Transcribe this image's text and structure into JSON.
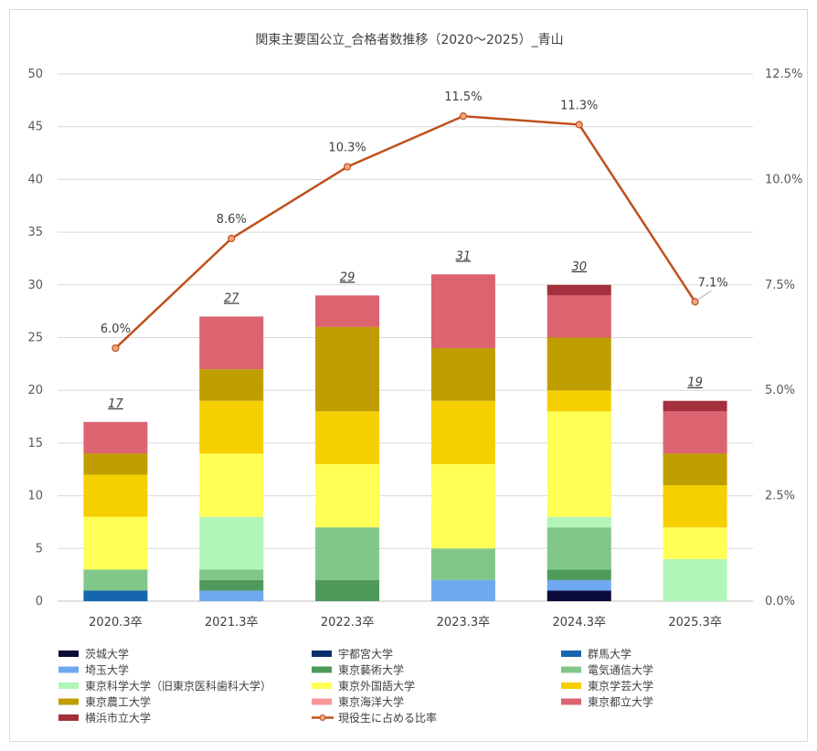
{
  "chart_data": {
    "type": "bar",
    "stacked": true,
    "title": "関東主要国公立_合格者数推移（2020～2025）_青山",
    "categories": [
      "2020.3卒",
      "2021.3卒",
      "2022.3卒",
      "2023.3卒",
      "2024.3卒",
      "2025.3卒"
    ],
    "left_axis": {
      "ylim": [
        0,
        50
      ],
      "ticks": [
        "0",
        "5",
        "10",
        "15",
        "20",
        "25",
        "30",
        "35",
        "40",
        "45",
        "50"
      ]
    },
    "right_axis": {
      "ylim": [
        0,
        12.5
      ],
      "ticks": [
        "0.0%",
        "2.5%",
        "5.0%",
        "7.5%",
        "10.0%",
        "12.5%"
      ]
    },
    "grid": true,
    "legend_position": "bottom",
    "series": [
      {
        "name": "茨城大学",
        "color": "#0b0b3b",
        "values": [
          0,
          0,
          0,
          0,
          1,
          0
        ]
      },
      {
        "name": "宇都宮大学",
        "color": "#0b2f6b",
        "values": [
          0,
          0,
          0,
          0,
          0,
          0
        ]
      },
      {
        "name": "群馬大学",
        "color": "#1565b0",
        "values": [
          1,
          0,
          0,
          0,
          0,
          0
        ]
      },
      {
        "name": "埼玉大学",
        "color": "#6fa8f0",
        "values": [
          0,
          1,
          0,
          2,
          1,
          0
        ]
      },
      {
        "name": "東京藝術大学",
        "color": "#4f9a5a",
        "values": [
          0,
          1,
          2,
          0,
          1,
          0
        ]
      },
      {
        "name": "電気通信大学",
        "color": "#82c78a",
        "values": [
          2,
          1,
          5,
          3,
          4,
          0
        ]
      },
      {
        "name": "東京科学大学（旧東京医科歯科大学）",
        "color": "#b2f5b8",
        "values": [
          0,
          5,
          0,
          0,
          1,
          4
        ]
      },
      {
        "name": "東京外国語大学",
        "color": "#ffff55",
        "values": [
          5,
          6,
          6,
          8,
          10,
          3
        ]
      },
      {
        "name": "東京学芸大学",
        "color": "#f5cf00",
        "values": [
          4,
          5,
          5,
          6,
          2,
          4
        ]
      },
      {
        "name": "東京農工大学",
        "color": "#bf9f00",
        "values": [
          2,
          3,
          8,
          5,
          5,
          3
        ]
      },
      {
        "name": "東京海洋大学",
        "color": "#f59898",
        "values": [
          0,
          0,
          0,
          0,
          0,
          0
        ]
      },
      {
        "name": "東京都立大学",
        "color": "#db6470",
        "values": [
          3,
          5,
          3,
          7,
          4,
          4
        ]
      },
      {
        "name": "横浜市立大学",
        "color": "#a3303c",
        "values": [
          0,
          0,
          0,
          0,
          1,
          1
        ]
      }
    ],
    "totals": [
      "17",
      "27",
      "29",
      "31",
      "30",
      "19"
    ],
    "line_series": {
      "name": "現役生に占める比率",
      "color": "#c0501c",
      "axis": "right",
      "values": [
        6.0,
        8.6,
        10.3,
        11.5,
        11.3,
        7.1
      ],
      "labels": [
        "6.0%",
        "8.6%",
        "10.3%",
        "11.5%",
        "11.3%",
        "7.1%"
      ]
    }
  }
}
